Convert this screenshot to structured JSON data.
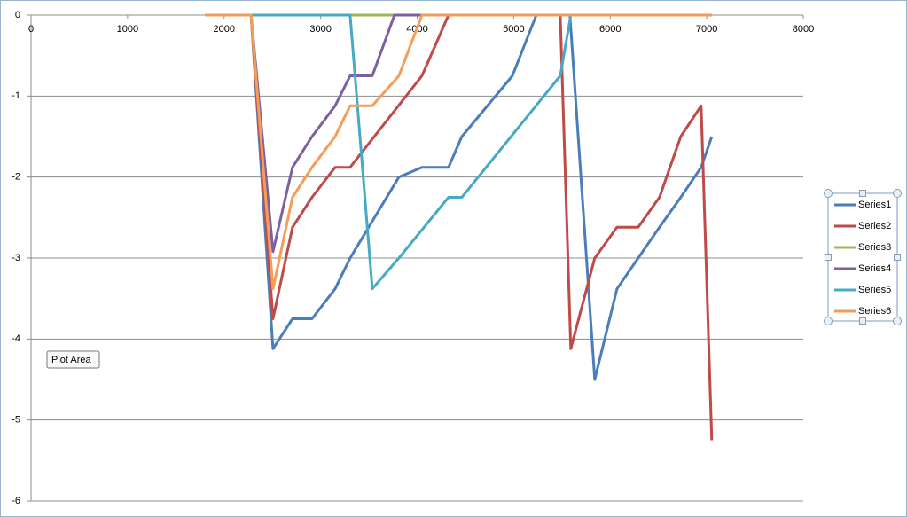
{
  "chart_data": {
    "type": "line",
    "xlim": [
      0,
      8000
    ],
    "xticks": [
      0,
      1000,
      2000,
      3000,
      4000,
      5000,
      6000,
      7000,
      8000
    ],
    "ylim": [
      -6,
      0
    ],
    "yticks": [
      0,
      -1,
      -2,
      -3,
      -4,
      -5,
      -6
    ],
    "grid": true,
    "legend": "right",
    "tooltip": "Plot Area",
    "series": [
      {
        "name": "Series1",
        "color": "#4a7ebb",
        "x": [
          2280,
          2507,
          2709,
          2911,
          3150,
          3306,
          3811,
          4050,
          4325,
          4463,
          4986,
          5234,
          5583,
          5840,
          6070,
          6290,
          6510,
          6731,
          6942,
          7052
        ],
        "values": [
          0,
          -4.12,
          -3.75,
          -3.75,
          -3.38,
          -3,
          -2,
          -1.88,
          -1.88,
          -1.5,
          -0.75,
          0,
          0,
          -4.5,
          -3.38,
          -3,
          -2.62,
          -2.25,
          -1.88,
          -1.5
        ]
      },
      {
        "name": "Series2",
        "color": "#be4b48",
        "x": [
          2280,
          2507,
          2709,
          2911,
          3150,
          3306,
          4050,
          4325,
          5482,
          5592,
          5840,
          6070,
          6290,
          6510,
          6731,
          6942,
          7052
        ],
        "values": [
          0,
          -3.75,
          -2.62,
          -2.25,
          -1.88,
          -1.88,
          -0.75,
          0,
          0,
          -4.12,
          -3,
          -2.62,
          -2.62,
          -2.25,
          -1.5,
          -1.12,
          -5.25
        ]
      },
      {
        "name": "Series3",
        "color": "#98b954",
        "x": [
          2280,
          7052
        ],
        "values": [
          0,
          0
        ]
      },
      {
        "name": "Series4",
        "color": "#7d60a0",
        "x": [
          2280,
          2507,
          2709,
          2911,
          3150,
          3306,
          3535,
          3765,
          7052
        ],
        "values": [
          0,
          -2.92,
          -1.88,
          -1.5,
          -1.12,
          -0.75,
          -0.75,
          0,
          0
        ]
      },
      {
        "name": "Series5",
        "color": "#46aac5",
        "x": [
          2280,
          3306,
          3535,
          3811,
          4325,
          4463,
          5482,
          5592,
          7052
        ],
        "values": [
          0,
          0,
          -3.38,
          -3,
          -2.25,
          -2.25,
          -0.75,
          0,
          0
        ]
      },
      {
        "name": "Series6",
        "color": "#f59d56",
        "x": [
          1800,
          2280,
          2507,
          2709,
          2911,
          3150,
          3306,
          3535,
          3811,
          4050,
          7052
        ],
        "values": [
          0,
          0,
          -3.38,
          -2.25,
          -1.88,
          -1.5,
          -1.12,
          -1.12,
          -0.75,
          0,
          0
        ]
      }
    ]
  }
}
